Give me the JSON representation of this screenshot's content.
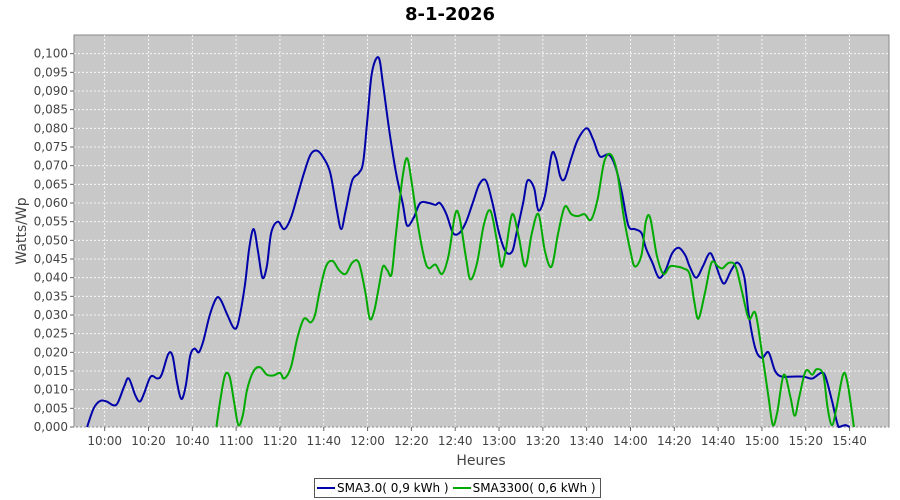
{
  "title": "8-1-2026",
  "chart_data": {
    "type": "line",
    "title": "8-1-2026",
    "xlabel": "Heures",
    "ylabel": "Watts/Wp",
    "x_unit": "time (hh:mm)",
    "xlim": [
      "09:46",
      "15:58"
    ],
    "ylim": [
      0,
      0.105
    ],
    "grid": true,
    "legend_position": "bottom",
    "x_tick_labels": [
      "10:00",
      "10:20",
      "10:40",
      "11:00",
      "11:20",
      "11:40",
      "12:00",
      "12:20",
      "12:40",
      "13:00",
      "13:20",
      "13:40",
      "14:00",
      "14:20",
      "14:40",
      "15:00",
      "15:20",
      "15:40"
    ],
    "y_tick_labels": [
      "0,000",
      "0,005",
      "0,010",
      "0,015",
      "0,020",
      "0,025",
      "0,030",
      "0,035",
      "0,040",
      "0,045",
      "0,050",
      "0,055",
      "0,060",
      "0,065",
      "0,070",
      "0,075",
      "0,080",
      "0,085",
      "0,090",
      "0,095",
      "0,100"
    ],
    "series": [
      {
        "name": "SMA3.0( 0,9 kWh )",
        "color": "#0000aa",
        "points": [
          [
            "09:52",
            0.0
          ],
          [
            "09:55",
            0.005
          ],
          [
            "09:58",
            0.007
          ],
          [
            "10:01",
            0.0068
          ],
          [
            "10:04",
            0.0058
          ],
          [
            "10:06",
            0.0065
          ],
          [
            "10:09",
            0.011
          ],
          [
            "10:11",
            0.013
          ],
          [
            "10:14",
            0.0085
          ],
          [
            "10:16",
            0.0068
          ],
          [
            "10:18",
            0.009
          ],
          [
            "10:21",
            0.0135
          ],
          [
            "10:24",
            0.013
          ],
          [
            "10:26",
            0.014
          ],
          [
            "10:29",
            0.0195
          ],
          [
            "10:31",
            0.019
          ],
          [
            "10:33",
            0.012
          ],
          [
            "10:35",
            0.0075
          ],
          [
            "10:37",
            0.011
          ],
          [
            "10:39",
            0.019
          ],
          [
            "10:41",
            0.021
          ],
          [
            "10:43",
            0.02
          ],
          [
            "10:45",
            0.023
          ],
          [
            "10:48",
            0.03
          ],
          [
            "10:51",
            0.0345
          ],
          [
            "10:53",
            0.034
          ],
          [
            "10:56",
            0.03
          ],
          [
            "10:59",
            0.0265
          ],
          [
            "11:01",
            0.028
          ],
          [
            "11:04",
            0.038
          ],
          [
            "11:06",
            0.048
          ],
          [
            "11:08",
            0.053
          ],
          [
            "11:10",
            0.047
          ],
          [
            "11:12",
            0.04
          ],
          [
            "11:14",
            0.043
          ],
          [
            "11:16",
            0.052
          ],
          [
            "11:19",
            0.055
          ],
          [
            "11:22",
            0.053
          ],
          [
            "11:25",
            0.056
          ],
          [
            "11:28",
            0.062
          ],
          [
            "11:31",
            0.068
          ],
          [
            "11:34",
            0.073
          ],
          [
            "11:37",
            0.074
          ],
          [
            "11:40",
            0.072
          ],
          [
            "11:43",
            0.068
          ],
          [
            "11:46",
            0.058
          ],
          [
            "11:48",
            0.053
          ],
          [
            "11:50",
            0.058
          ],
          [
            "11:53",
            0.066
          ],
          [
            "11:56",
            0.068
          ],
          [
            "11:58",
            0.071
          ],
          [
            "12:00",
            0.083
          ],
          [
            "12:02",
            0.095
          ],
          [
            "12:05",
            0.099
          ],
          [
            "12:07",
            0.092
          ],
          [
            "12:10",
            0.079
          ],
          [
            "12:13",
            0.068
          ],
          [
            "12:16",
            0.06
          ],
          [
            "12:18",
            0.054
          ],
          [
            "12:21",
            0.056
          ],
          [
            "12:24",
            0.06
          ],
          [
            "12:28",
            0.06
          ],
          [
            "12:31",
            0.0595
          ],
          [
            "12:33",
            0.06
          ],
          [
            "12:36",
            0.057
          ],
          [
            "12:39",
            0.052
          ],
          [
            "12:42",
            0.052
          ],
          [
            "12:45",
            0.055
          ],
          [
            "12:48",
            0.06
          ],
          [
            "12:51",
            0.065
          ],
          [
            "12:54",
            0.066
          ],
          [
            "12:57",
            0.06
          ],
          [
            "13:00",
            0.052
          ],
          [
            "13:03",
            0.047
          ],
          [
            "13:06",
            0.047
          ],
          [
            "13:08",
            0.052
          ],
          [
            "13:11",
            0.06
          ],
          [
            "13:13",
            0.066
          ],
          [
            "13:16",
            0.064
          ],
          [
            "13:18",
            0.058
          ],
          [
            "13:21",
            0.062
          ],
          [
            "13:24",
            0.073
          ],
          [
            "13:26",
            0.072
          ],
          [
            "13:28",
            0.067
          ],
          [
            "13:30",
            0.0665
          ],
          [
            "13:33",
            0.072
          ],
          [
            "13:36",
            0.077
          ],
          [
            "13:40",
            0.08
          ],
          [
            "13:43",
            0.077
          ],
          [
            "13:46",
            0.0725
          ],
          [
            "13:50",
            0.073
          ],
          [
            "13:53",
            0.07
          ],
          [
            "13:56",
            0.063
          ],
          [
            "13:59",
            0.054
          ],
          [
            "14:02",
            0.053
          ],
          [
            "14:05",
            0.052
          ],
          [
            "14:07",
            0.048
          ],
          [
            "14:10",
            0.044
          ],
          [
            "14:13",
            0.04
          ],
          [
            "14:16",
            0.042
          ],
          [
            "14:19",
            0.0465
          ],
          [
            "14:22",
            0.048
          ],
          [
            "14:25",
            0.046
          ],
          [
            "14:27",
            0.043
          ],
          [
            "14:30",
            0.04
          ],
          [
            "14:33",
            0.043
          ],
          [
            "14:36",
            0.0465
          ],
          [
            "14:38",
            0.045
          ],
          [
            "14:41",
            0.04
          ],
          [
            "14:43",
            0.0385
          ],
          [
            "14:46",
            0.042
          ],
          [
            "14:49",
            0.044
          ],
          [
            "14:52",
            0.04
          ],
          [
            "14:54",
            0.03
          ],
          [
            "14:57",
            0.021
          ],
          [
            "15:00",
            0.0185
          ],
          [
            "15:03",
            0.02
          ],
          [
            "15:06",
            0.015
          ],
          [
            "15:09",
            0.0135
          ],
          [
            "15:14",
            0.0135
          ],
          [
            "15:19",
            0.0135
          ],
          [
            "15:23",
            0.013
          ],
          [
            "15:27",
            0.0145
          ],
          [
            "15:29",
            0.0135
          ],
          [
            "15:32",
            0.007
          ],
          [
            "15:35",
            0.0
          ],
          [
            "15:38",
            0.0005
          ],
          [
            "15:40",
            0.0
          ]
        ]
      },
      {
        "name": "SMA3300( 0,6 kWh )",
        "color": "#00aa00",
        "points": [
          [
            "10:51",
            0.0
          ],
          [
            "10:53",
            0.008
          ],
          [
            "10:55",
            0.014
          ],
          [
            "10:57",
            0.0135
          ],
          [
            "10:59",
            0.007
          ],
          [
            "11:01",
            0.0005
          ],
          [
            "11:03",
            0.003
          ],
          [
            "11:05",
            0.01
          ],
          [
            "11:08",
            0.015
          ],
          [
            "11:11",
            0.016
          ],
          [
            "11:14",
            0.014
          ],
          [
            "11:17",
            0.0138
          ],
          [
            "11:20",
            0.0145
          ],
          [
            "11:22",
            0.013
          ],
          [
            "11:25",
            0.016
          ],
          [
            "11:28",
            0.024
          ],
          [
            "11:31",
            0.029
          ],
          [
            "11:34",
            0.028
          ],
          [
            "11:36",
            0.03
          ],
          [
            "11:38",
            0.036
          ],
          [
            "11:41",
            0.043
          ],
          [
            "11:44",
            0.0445
          ],
          [
            "11:47",
            0.042
          ],
          [
            "11:50",
            0.041
          ],
          [
            "11:53",
            0.044
          ],
          [
            "11:56",
            0.044
          ],
          [
            "11:59",
            0.036
          ],
          [
            "12:01",
            0.029
          ],
          [
            "12:03",
            0.031
          ],
          [
            "12:05",
            0.037
          ],
          [
            "12:07",
            0.043
          ],
          [
            "12:09",
            0.042
          ],
          [
            "12:11",
            0.041
          ],
          [
            "12:13",
            0.052
          ],
          [
            "12:16",
            0.067
          ],
          [
            "12:18",
            0.072
          ],
          [
            "12:20",
            0.066
          ],
          [
            "12:23",
            0.054
          ],
          [
            "12:26",
            0.045
          ],
          [
            "12:28",
            0.0425
          ],
          [
            "12:31",
            0.0435
          ],
          [
            "12:34",
            0.041
          ],
          [
            "12:37",
            0.046
          ],
          [
            "12:40",
            0.057
          ],
          [
            "12:42",
            0.056
          ],
          [
            "12:45",
            0.045
          ],
          [
            "12:47",
            0.0395
          ],
          [
            "12:50",
            0.044
          ],
          [
            "12:53",
            0.054
          ],
          [
            "12:56",
            0.058
          ],
          [
            "12:59",
            0.05
          ],
          [
            "13:01",
            0.043
          ],
          [
            "13:03",
            0.047
          ],
          [
            "13:06",
            0.057
          ],
          [
            "13:09",
            0.051
          ],
          [
            "13:12",
            0.043
          ],
          [
            "13:15",
            0.052
          ],
          [
            "13:18",
            0.057
          ],
          [
            "13:21",
            0.047
          ],
          [
            "13:24",
            0.043
          ],
          [
            "13:27",
            0.052
          ],
          [
            "13:30",
            0.059
          ],
          [
            "13:33",
            0.057
          ],
          [
            "13:36",
            0.0565
          ],
          [
            "13:39",
            0.057
          ],
          [
            "13:42",
            0.0555
          ],
          [
            "13:45",
            0.061
          ],
          [
            "13:48",
            0.071
          ],
          [
            "13:51",
            0.073
          ],
          [
            "13:54",
            0.068
          ],
          [
            "13:57",
            0.056
          ],
          [
            "14:00",
            0.047
          ],
          [
            "14:02",
            0.043
          ],
          [
            "14:05",
            0.046
          ],
          [
            "14:07",
            0.055
          ],
          [
            "14:09",
            0.056
          ],
          [
            "14:12",
            0.046
          ],
          [
            "14:15",
            0.041
          ],
          [
            "14:18",
            0.043
          ],
          [
            "14:21",
            0.043
          ],
          [
            "14:24",
            0.0425
          ],
          [
            "14:27",
            0.041
          ],
          [
            "14:29",
            0.034
          ],
          [
            "14:31",
            0.029
          ],
          [
            "14:34",
            0.036
          ],
          [
            "14:37",
            0.044
          ],
          [
            "14:40",
            0.043
          ],
          [
            "14:42",
            0.0425
          ],
          [
            "14:45",
            0.044
          ],
          [
            "14:48",
            0.043
          ],
          [
            "14:51",
            0.036
          ],
          [
            "14:54",
            0.029
          ],
          [
            "14:57",
            0.0305
          ],
          [
            "15:00",
            0.02
          ],
          [
            "15:03",
            0.008
          ],
          [
            "15:05",
            0.0005
          ],
          [
            "15:07",
            0.004
          ],
          [
            "15:10",
            0.014
          ],
          [
            "15:13",
            0.008
          ],
          [
            "15:15",
            0.003
          ],
          [
            "15:17",
            0.008
          ],
          [
            "15:20",
            0.015
          ],
          [
            "15:23",
            0.014
          ],
          [
            "15:25",
            0.0155
          ],
          [
            "15:28",
            0.014
          ],
          [
            "15:30",
            0.005
          ],
          [
            "15:32",
            0.0005
          ],
          [
            "15:34",
            0.005
          ],
          [
            "15:37",
            0.014
          ],
          [
            "15:39",
            0.012
          ],
          [
            "15:42",
            0.0
          ]
        ]
      }
    ]
  }
}
